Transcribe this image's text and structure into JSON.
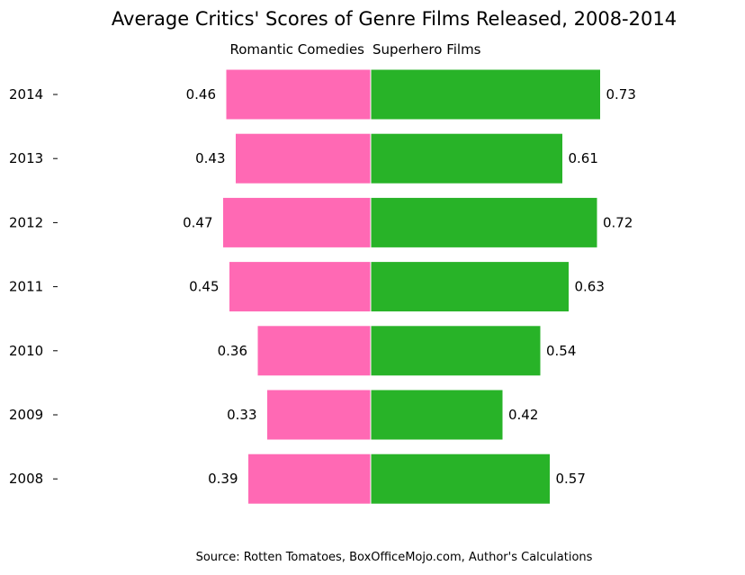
{
  "chart_data": {
    "type": "bar",
    "orientation": "horizontal-diverging",
    "title": "Average Critics' Scores of Genre Films Released, 2008-2014",
    "categories": [
      "2014",
      "2013",
      "2012",
      "2011",
      "2010",
      "2009",
      "2008"
    ],
    "series": [
      {
        "name": "Romantic Comedies",
        "direction": "left",
        "values": [
          0.46,
          0.43,
          0.47,
          0.45,
          0.36,
          0.33,
          0.39
        ],
        "color": "#FF69B4"
      },
      {
        "name": "Superhero Films",
        "direction": "right",
        "values": [
          0.73,
          0.61,
          0.72,
          0.63,
          0.54,
          0.42,
          0.57
        ],
        "color": "#28B328"
      }
    ],
    "data_labels": true,
    "grid": false,
    "source": "Source: Rotten Tomatoes, BoxOfficeMojo.com, Author's Calculations"
  }
}
